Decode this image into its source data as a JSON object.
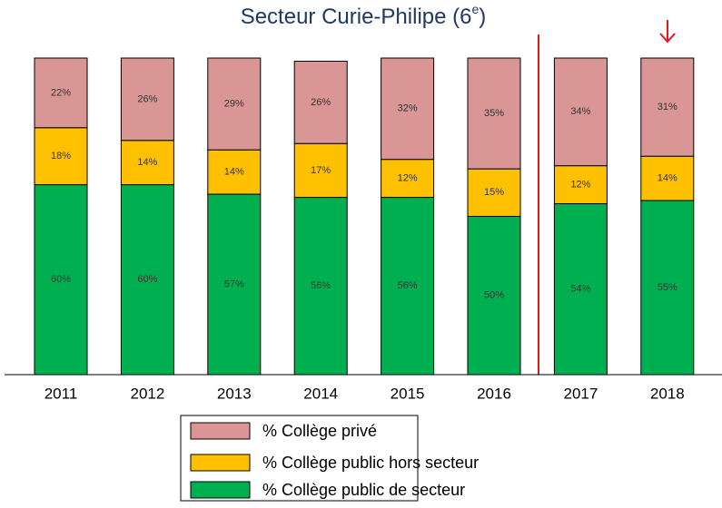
{
  "chart_data": {
    "type": "stacked_bar",
    "title": [
      "Secteur Curie-Philipe (6",
      "e",
      ")"
    ],
    "categories": [
      "2011",
      "2012",
      "2013",
      "2014",
      "2015",
      "2016",
      "2017",
      "2018"
    ],
    "ylim": [
      0,
      100
    ],
    "series": [
      {
        "name": "% Collège public de secteur",
        "color": "#00b050",
        "values": [
          60,
          60,
          57,
          56,
          56,
          50,
          54,
          55
        ],
        "value_labels": [
          "60%",
          "60%",
          "57%",
          "56%",
          "56%",
          "50%",
          "54%",
          "55%"
        ]
      },
      {
        "name": "% Collège public hors secteur",
        "color": "#ffc000",
        "values": [
          18,
          14,
          14,
          17,
          12,
          15,
          12,
          14
        ],
        "value_labels": [
          "18%",
          "14%",
          "14%",
          "17%",
          "12%",
          "15%",
          "12%",
          "14%"
        ]
      },
      {
        "name": "% Collège privé",
        "color": "#d99694",
        "values": [
          22,
          26,
          29,
          26,
          32,
          35,
          34,
          31
        ],
        "value_labels": [
          "22%",
          "26%",
          "29%",
          "26%",
          "32%",
          "35%",
          "34%",
          "31%"
        ]
      }
    ]
  }
}
